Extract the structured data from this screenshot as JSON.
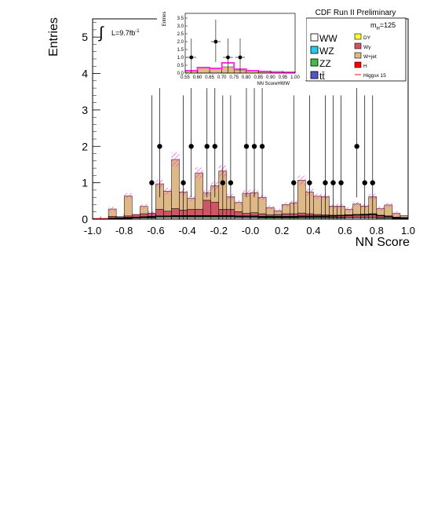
{
  "chart_data": [
    {
      "type": "bar",
      "stacked": true,
      "title": "CDF Run II Preliminary",
      "xlabel": "NN Score",
      "ylabel": "Entries",
      "xlim": [
        -1.0,
        1.0
      ],
      "ylim": [
        0,
        5.5
      ],
      "x_ticks": [
        "-1.0",
        "-0.8",
        "-0.6",
        "-0.4",
        "-0.2",
        "-0.0",
        "0.2",
        "0.4",
        "0.6",
        "0.8",
        "1.0"
      ],
      "y_ticks": [
        "0",
        "1",
        "2",
        "3",
        "4",
        "5"
      ],
      "mass_label": "m",
      "mass_sub": "H",
      "mass_value": "=125",
      "lumi_prefix": "L=9.7fb",
      "lumi_exp": "-1",
      "legend_left": [
        "WW",
        "WZ",
        "ZZ",
        "tt̄"
      ],
      "legend_right": [
        "DY",
        "Wγ",
        "W+jet",
        "H",
        "Higgsx 15"
      ],
      "colors": {
        "WW": "#ffffff",
        "WZ": "#22ccee",
        "ZZ": "#44bb44",
        "tt": "#5555cc",
        "DY": "#ffff33",
        "Wgamma": "#cc5566",
        "Wjet": "#deb887",
        "H": "#ff0000",
        "higgs_line": "#ee1111",
        "uncertainty": "#ff33dd",
        "data": "#000000"
      },
      "bin_edges_start": -0.9,
      "bin_width": 0.05,
      "series": [
        {
          "name": "W+jet",
          "values": [
            0.2,
            0.0,
            0.55,
            0.0,
            0.2,
            0.0,
            0.7,
            0.55,
            1.35,
            0.5,
            0.3,
            1.0,
            0.2,
            0.45,
            1.05,
            0.35,
            0.25,
            0.55,
            0.55,
            0.45,
            0.2,
            0.1,
            0.25,
            0.3,
            0.9,
            0.6,
            0.5,
            0.5,
            0.25,
            0.25,
            0.15,
            0.3,
            0.25,
            0.5,
            0.2,
            0.3,
            0.1,
            0.05
          ]
        },
        {
          "name": "Wγ",
          "values": [
            0.05,
            0.04,
            0.06,
            0.08,
            0.1,
            0.12,
            0.2,
            0.15,
            0.22,
            0.18,
            0.2,
            0.2,
            0.45,
            0.4,
            0.2,
            0.2,
            0.15,
            0.1,
            0.12,
            0.1,
            0.07,
            0.08,
            0.1,
            0.1,
            0.12,
            0.1,
            0.08,
            0.07,
            0.06,
            0.06,
            0.06,
            0.06,
            0.05,
            0.06,
            0.05,
            0.05,
            0.03,
            0.02
          ]
        },
        {
          "name": "ZZ",
          "values": [
            0.01,
            0.01,
            0.01,
            0.02,
            0.02,
            0.02,
            0.03,
            0.03,
            0.03,
            0.03,
            0.03,
            0.03,
            0.03,
            0.03,
            0.03,
            0.03,
            0.02,
            0.02,
            0.02,
            0.02,
            0.02,
            0.02,
            0.02,
            0.02,
            0.02,
            0.02,
            0.02,
            0.02,
            0.02,
            0.02,
            0.02,
            0.02,
            0.02,
            0.02,
            0.01,
            0.01,
            0.01,
            0.01
          ]
        },
        {
          "name": "WW",
          "values": [
            0.02,
            0.02,
            0.02,
            0.03,
            0.03,
            0.03,
            0.04,
            0.04,
            0.04,
            0.04,
            0.04,
            0.04,
            0.04,
            0.04,
            0.04,
            0.04,
            0.04,
            0.04,
            0.04,
            0.03,
            0.03,
            0.03,
            0.03,
            0.03,
            0.03,
            0.03,
            0.03,
            0.03,
            0.03,
            0.03,
            0.04,
            0.04,
            0.04,
            0.04,
            0.03,
            0.03,
            0.02,
            0.02
          ]
        }
      ],
      "higgs_x15": [
        0.02,
        0.03,
        0.04,
        0.05,
        0.06,
        0.07,
        0.08,
        0.08,
        0.09,
        0.09,
        0.09,
        0.09,
        0.09,
        0.09,
        0.09,
        0.09,
        0.08,
        0.08,
        0.08,
        0.07,
        0.07,
        0.07,
        0.07,
        0.07,
        0.08,
        0.08,
        0.08,
        0.08,
        0.09,
        0.1,
        0.11,
        0.12,
        0.13,
        0.14,
        0.1,
        0.08,
        0.05,
        0.03
      ],
      "data_points": {
        "x": [
          -0.625,
          -0.575,
          -0.425,
          -0.375,
          -0.275,
          -0.225,
          -0.175,
          -0.125,
          -0.025,
          0.025,
          0.075,
          0.275,
          0.375,
          0.475,
          0.525,
          0.575,
          0.675,
          0.725,
          0.775
        ],
        "y": [
          1,
          2,
          1,
          2,
          2,
          2,
          1,
          1,
          2,
          2,
          2,
          1,
          1,
          1,
          1,
          1,
          2,
          1,
          1
        ]
      }
    },
    {
      "type": "bar",
      "stacked": true,
      "title": "",
      "xlabel": "NN ScoreHWW",
      "ylabel": "Entries",
      "xlim": [
        0.55,
        1.0
      ],
      "ylim": [
        0,
        3.8
      ],
      "x_ticks": [
        "0.55",
        "0.60",
        "0.65",
        "0.70",
        "0.75",
        "0.80",
        "0.85",
        "0.90",
        "0.95",
        "1.00"
      ],
      "y_ticks": [
        "0.0",
        "0.5",
        "1.0",
        "1.5",
        "2.0",
        "2.5",
        "3.0",
        "3.5"
      ],
      "bin_edges_start": 0.55,
      "bin_width": 0.05,
      "background_total": [
        0.15,
        0.35,
        0.3,
        0.4,
        0.2,
        0.15,
        0.1,
        0.1,
        0.05
      ],
      "uncertainty_line": [
        0.15,
        0.35,
        0.3,
        0.65,
        0.25,
        0.15,
        0.1,
        0.05,
        0.05
      ],
      "data_points": {
        "x": [
          0.575,
          0.675,
          0.725,
          0.775
        ],
        "y": [
          1,
          2,
          1,
          1
        ]
      }
    }
  ]
}
